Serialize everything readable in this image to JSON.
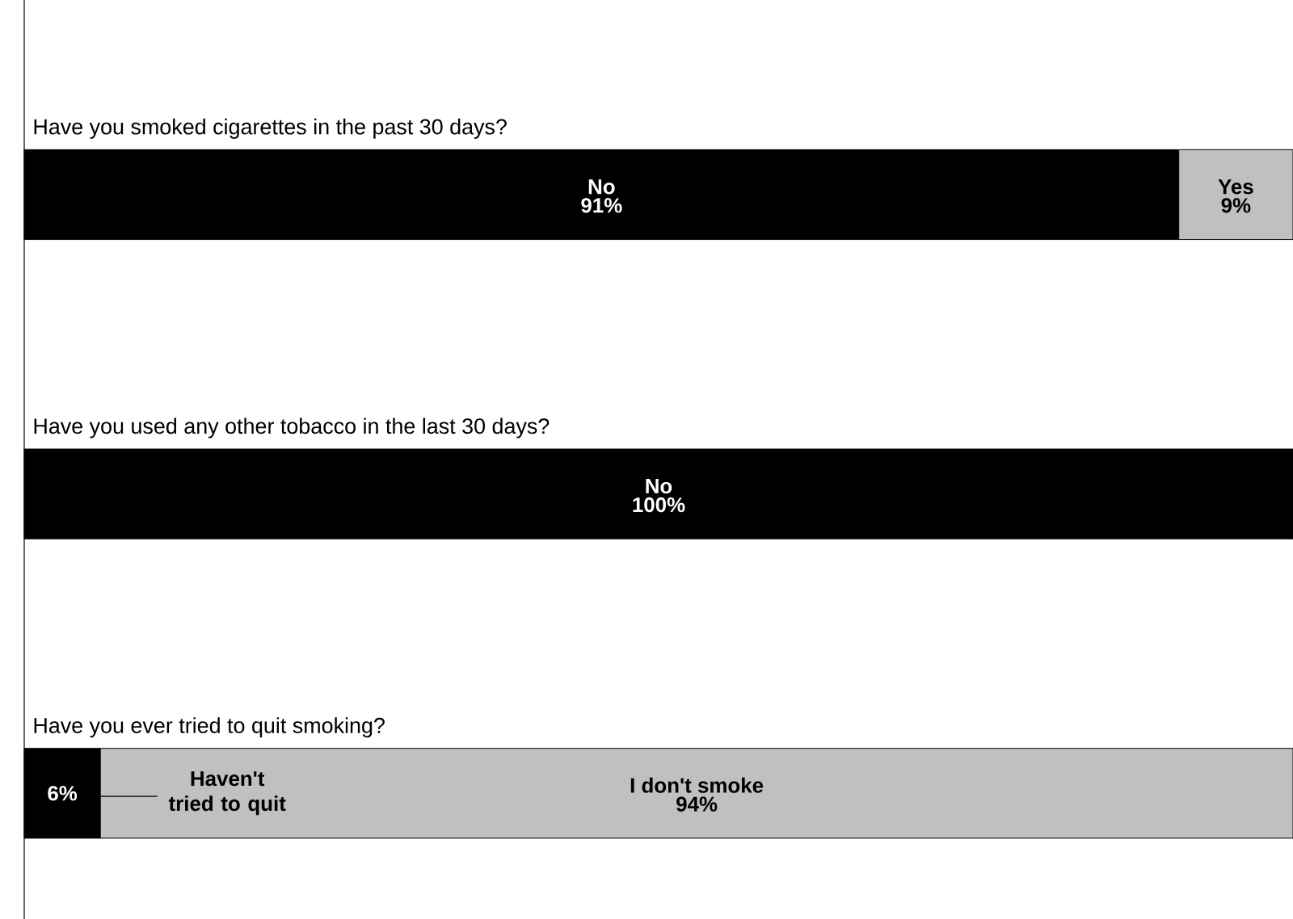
{
  "chart_data": {
    "type": "bar",
    "orientation": "horizontal",
    "stacked": true,
    "tick_labels": "y",
    "xlim": [
      0,
      100
    ],
    "categories": [
      "Have you smoked cigarettes in the past 30 days?",
      "Have you used any other tobacco in the last 30 days?",
      "Have you ever tried to quit smoking?"
    ],
    "series": [
      {
        "color": "#000000",
        "values": [
          91,
          100,
          6
        ],
        "value_labels": [
          "91%",
          "100%",
          "6%"
        ]
      },
      {
        "color": "#c0c0c0",
        "values": [
          9,
          null,
          94
        ],
        "value_labels": [
          "9%",
          null,
          "94%"
        ]
      }
    ],
    "annotations": [
      "No",
      "Yes",
      "No",
      "Haven't tried to quit",
      "I don't smoke"
    ]
  }
}
